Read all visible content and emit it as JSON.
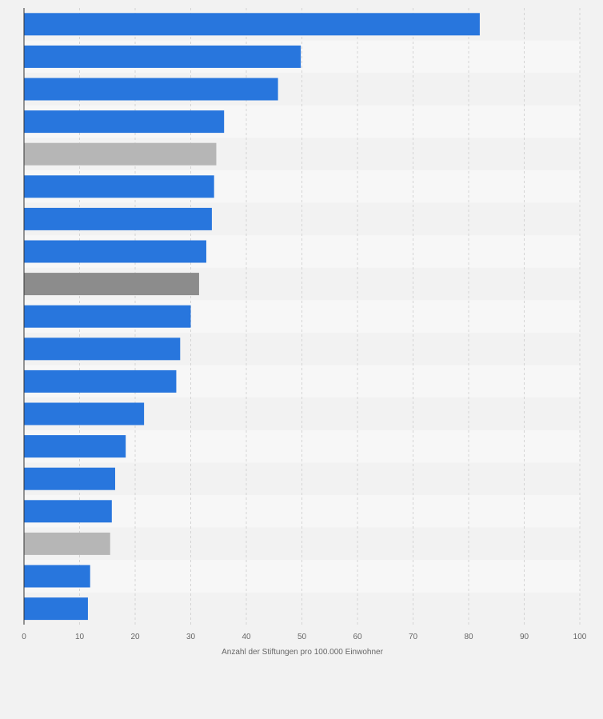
{
  "chart_data": {
    "type": "bar",
    "orientation": "horizontal",
    "title": "",
    "xlabel": "Anzahl der Stiftungen pro 100.000 Einwohner",
    "ylabel": "",
    "xlim": [
      0,
      100
    ],
    "xticks": [
      0,
      10,
      20,
      30,
      40,
      50,
      60,
      70,
      80,
      90,
      100
    ],
    "xtick_labels": [
      "0",
      "10",
      "20",
      "30",
      "40",
      "50",
      "60",
      "70",
      "80",
      "90",
      "100"
    ],
    "grid": true,
    "values": [
      82,
      49.8,
      45.7,
      36,
      34.6,
      34.2,
      33.8,
      32.8,
      31.5,
      30,
      28.1,
      27.4,
      21.6,
      18.3,
      16.4,
      15.8,
      15.5,
      11.9,
      11.5
    ],
    "bar_colors": [
      "#2876dd",
      "#2876dd",
      "#2876dd",
      "#2876dd",
      "#b6b6b6",
      "#2876dd",
      "#2876dd",
      "#2876dd",
      "#8c8c8c",
      "#2876dd",
      "#2876dd",
      "#2876dd",
      "#2876dd",
      "#2876dd",
      "#2876dd",
      "#2876dd",
      "#b6b6b6",
      "#2876dd",
      "#2876dd"
    ]
  },
  "colors": {
    "primary": "#2876dd",
    "highlight_light": "#b6b6b6",
    "highlight_dark": "#8c8c8c",
    "band_a": "#f7f7f7",
    "band_b": "#f2f2f2",
    "grid": "#d4d4d4",
    "axis": "#333333",
    "tick_text": "#666666"
  }
}
